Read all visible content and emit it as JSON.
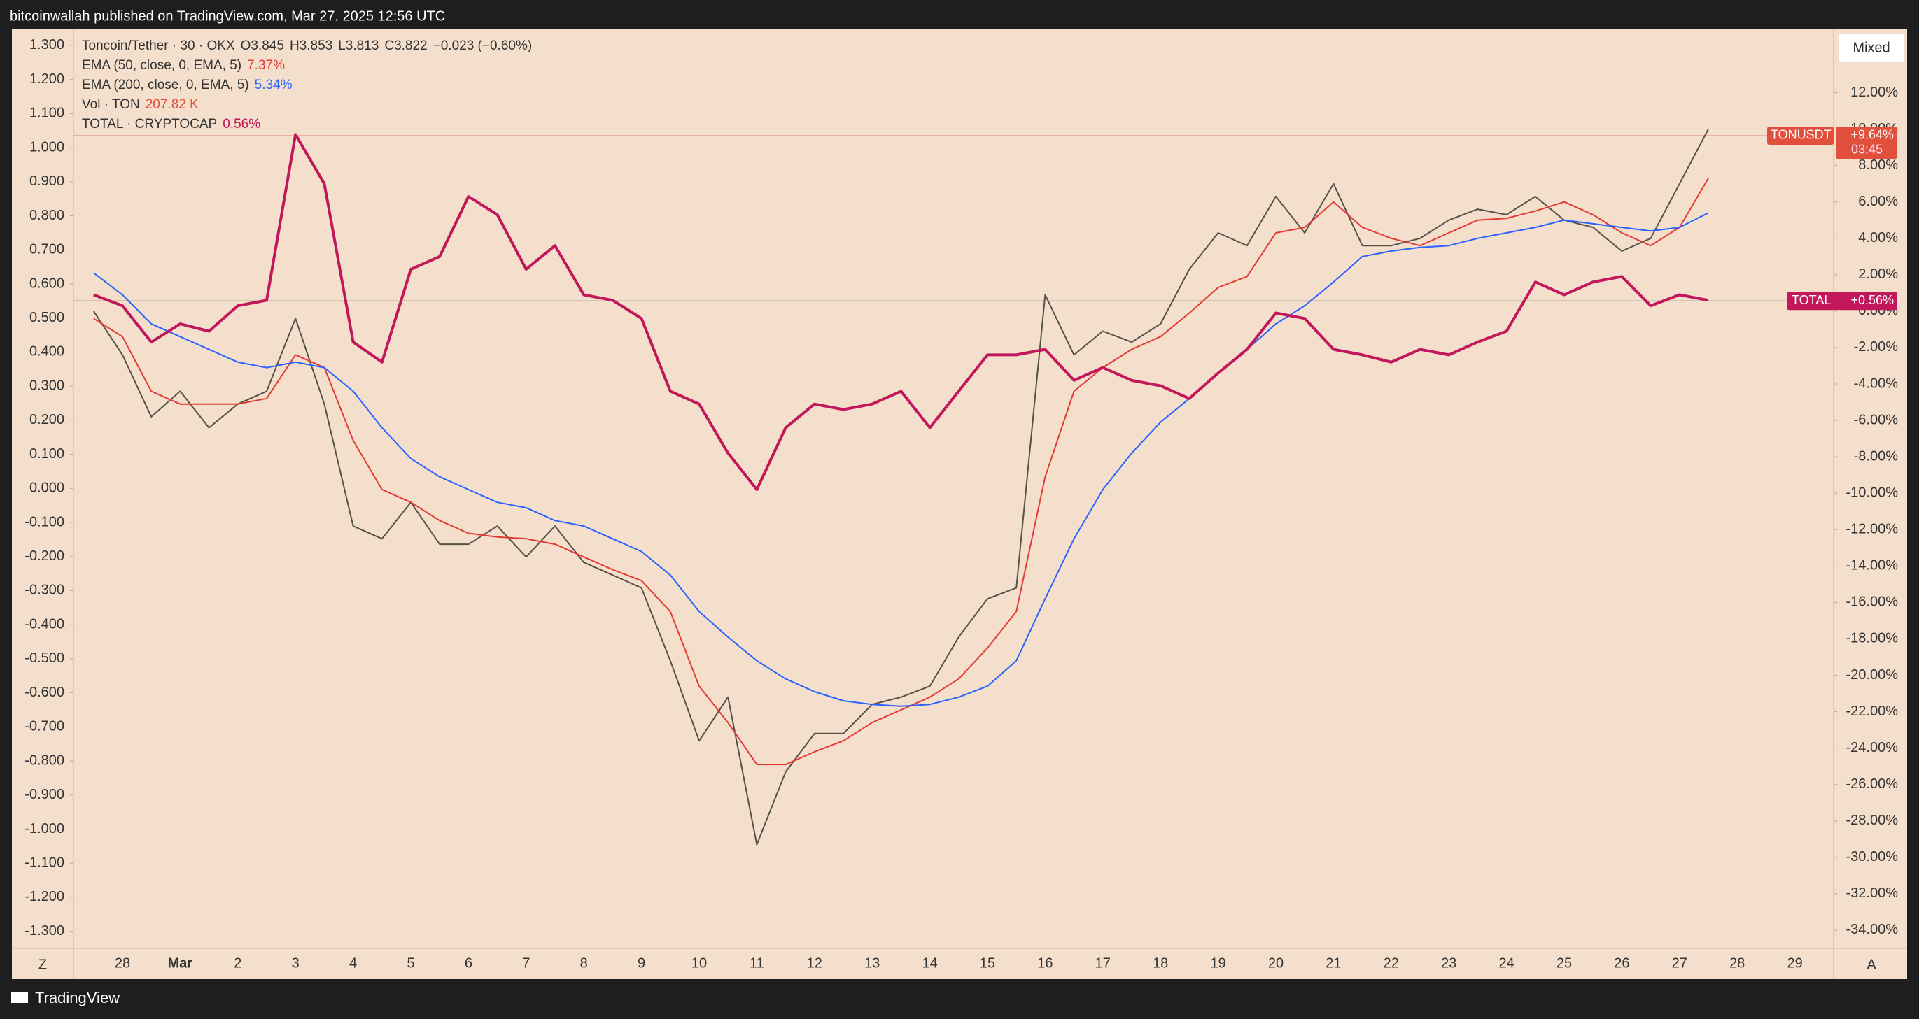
{
  "header": {
    "text": "bitcoinwallah published on TradingView.com, Mar 27, 2025 12:56 UTC"
  },
  "legend": {
    "open": "O3.845",
    "high": "H3.853",
    "low": "L3.813",
    "close": "C3.822",
    "change": "−0.023 (−0.60%)",
    "volume_name": "Vol · TON",
    "volume_value": "207.82 K"
  },
  "buttons": {
    "mode": "Mixed",
    "left": "Z",
    "right": "A"
  },
  "footer": {
    "brand": "TradingView"
  },
  "chart_data": {
    "type": "line",
    "categories": [
      null,
      "28",
      null,
      "Mar",
      null,
      "2",
      null,
      "3",
      null,
      "4",
      null,
      "5",
      null,
      "6",
      null,
      "7",
      null,
      "8",
      null,
      "9",
      null,
      "10",
      null,
      "11",
      null,
      "12",
      null,
      "13",
      null,
      "14",
      null,
      "15",
      null,
      "16",
      null,
      "17",
      null,
      "18",
      null,
      "19",
      null,
      "20",
      null,
      "21",
      null,
      "22",
      null,
      "23",
      null,
      "24",
      null,
      "25",
      null,
      "26",
      null,
      "27",
      null,
      "28",
      null,
      "29"
    ],
    "series": [
      {
        "name": "Toncoin/Tether · 30 · OKX",
        "color": "#555248",
        "axis": "y2",
        "values": [
          0,
          -2.4,
          -5.8,
          -4.4,
          -6.4,
          -5.1,
          -4.4,
          -0.4,
          -5.1,
          -11.8,
          -12.5,
          -10.5,
          -12.8,
          -12.8,
          -11.8,
          -13.5,
          -11.8,
          -13.8,
          -14.5,
          -15.2,
          -19.2,
          -23.6,
          -21.2,
          -29.3,
          -25.3,
          -23.2,
          -23.2,
          -21.6,
          -21.2,
          -20.6,
          -17.9,
          -15.8,
          -15.2,
          0.9,
          -2.4,
          -1.1,
          -1.7,
          -0.7,
          2.3,
          4.3,
          3.6,
          6.3,
          4.3,
          7.0,
          3.6,
          3.6,
          4.0,
          5.0,
          5.6,
          5.3,
          6.3,
          5.0,
          4.6,
          3.3,
          4.0,
          7.0,
          10.0,
          null,
          null,
          null
        ]
      },
      {
        "name": "EMA (50, close, 0, EMA, 5)",
        "legend_value": "7.37%",
        "color": "#e53935",
        "axis": "y2",
        "values": [
          -0.4,
          -1.4,
          -4.4,
          -5.1,
          -5.1,
          -5.1,
          -4.8,
          -2.4,
          -3.1,
          -7.1,
          -9.8,
          -10.5,
          -11.5,
          -12.2,
          -12.4,
          -12.5,
          -12.8,
          -13.5,
          -14.2,
          -14.8,
          -16.5,
          -20.6,
          -22.6,
          -24.9,
          -24.9,
          -24.2,
          -23.6,
          -22.6,
          -21.9,
          -21.2,
          -20.2,
          -18.5,
          -16.5,
          -9.1,
          -4.4,
          -3.1,
          -2.1,
          -1.4,
          -0.1,
          1.3,
          1.9,
          4.3,
          4.6,
          6.0,
          4.6,
          4.0,
          3.6,
          4.3,
          5.0,
          5.1,
          5.5,
          6.0,
          5.3,
          4.3,
          3.6,
          4.6,
          7.3,
          null,
          null,
          null
        ]
      },
      {
        "name": "EMA (200, close, 0, EMA, 5)",
        "legend_value": "5.34%",
        "color": "#2962ff",
        "axis": "y2",
        "values": [
          2.1,
          0.9,
          -0.7,
          -1.4,
          -2.1,
          -2.8,
          -3.1,
          -2.8,
          -3.1,
          -4.4,
          -6.4,
          -8.1,
          -9.1,
          -9.8,
          -10.5,
          -10.8,
          -11.5,
          -11.8,
          -12.5,
          -13.2,
          -14.5,
          -16.5,
          -17.9,
          -19.2,
          -20.2,
          -20.9,
          -21.4,
          -21.6,
          -21.7,
          -21.6,
          -21.2,
          -20.6,
          -19.2,
          -15.8,
          -12.5,
          -9.8,
          -7.8,
          -6.1,
          -4.8,
          -3.4,
          -2.1,
          -0.7,
          0.3,
          1.6,
          3.0,
          3.3,
          3.5,
          3.6,
          4.0,
          4.3,
          4.6,
          5.0,
          4.8,
          4.6,
          4.4,
          4.6,
          5.4,
          null,
          null,
          null
        ]
      },
      {
        "name": "TOTAL · CRYPTOCAP",
        "legend_value": "0.56%",
        "color": "#c2185b",
        "axis": "y2",
        "values": [
          0.9,
          0.3,
          -1.7,
          -0.7,
          -1.1,
          0.3,
          0.6,
          9.7,
          7.0,
          -1.7,
          -2.8,
          2.3,
          3.0,
          6.3,
          5.3,
          2.3,
          3.6,
          0.9,
          0.6,
          -0.4,
          -4.4,
          -5.1,
          -7.8,
          -9.8,
          -6.4,
          -5.1,
          -5.4,
          -5.1,
          -4.4,
          -6.4,
          -4.4,
          -2.4,
          -2.4,
          -2.1,
          -3.8,
          -3.1,
          -3.8,
          -4.1,
          -4.8,
          -3.4,
          -2.1,
          -0.1,
          -0.4,
          -2.1,
          -2.4,
          -2.8,
          -2.1,
          -2.4,
          -1.7,
          -1.1,
          1.6,
          0.9,
          1.6,
          1.9,
          0.3,
          0.9,
          0.6,
          null,
          null,
          null
        ]
      }
    ],
    "price_lines": [
      {
        "label": "TONUSDT",
        "value": 9.64,
        "value_label": "+9.64%",
        "time": "03:45",
        "color": "#e0503c"
      },
      {
        "label": "TOTAL",
        "value": 0.56,
        "value_label": "+0.56%",
        "color": "#c2185b"
      }
    ],
    "ylim": [
      -1.35,
      1.343
    ],
    "yticks": [
      {
        "value": 1.3,
        "label": "1.300"
      },
      {
        "value": 1.2,
        "label": "1.200"
      },
      {
        "value": 1.1,
        "label": "1.100"
      },
      {
        "value": 1.0,
        "label": "1.000"
      },
      {
        "value": 0.9,
        "label": "0.900"
      },
      {
        "value": 0.8,
        "label": "0.800"
      },
      {
        "value": 0.7,
        "label": "0.700"
      },
      {
        "value": 0.6,
        "label": "0.600"
      },
      {
        "value": 0.5,
        "label": "0.500"
      },
      {
        "value": 0.4,
        "label": "0.400"
      },
      {
        "value": 0.3,
        "label": "0.300"
      },
      {
        "value": 0.2,
        "label": "0.200"
      },
      {
        "value": 0.1,
        "label": "0.100"
      },
      {
        "value": 0,
        "label": "0.000"
      },
      {
        "value": -0.1,
        "label": "-0.100"
      },
      {
        "value": -0.2,
        "label": "-0.200"
      },
      {
        "value": -0.3,
        "label": "-0.300"
      },
      {
        "value": -0.4,
        "label": "-0.400"
      },
      {
        "value": -0.5,
        "label": "-0.500"
      },
      {
        "value": -0.6,
        "label": "-0.600"
      },
      {
        "value": -0.7,
        "label": "-0.700"
      },
      {
        "value": -0.8,
        "label": "-0.800"
      },
      {
        "value": -0.9,
        "label": "-0.900"
      },
      {
        "value": -1.0,
        "label": "-1.000"
      },
      {
        "value": -1.1,
        "label": "-1.100"
      },
      {
        "value": -1.2,
        "label": "-1.200"
      },
      {
        "value": -1.3,
        "label": "-1.300"
      }
    ],
    "y2lim": [
      -35.0,
      15.4
    ],
    "y2ticks": [
      {
        "value": 12,
        "label": "12.00%"
      },
      {
        "value": 10,
        "label": "10.00%"
      },
      {
        "value": 8,
        "label": "8.00%"
      },
      {
        "value": 6,
        "label": "6.00%"
      },
      {
        "value": 4,
        "label": "4.00%"
      },
      {
        "value": 2,
        "label": "2.00%"
      },
      {
        "value": 0,
        "label": "0.00%"
      },
      {
        "value": -2,
        "label": "-2.00%"
      },
      {
        "value": -4,
        "label": "-4.00%"
      },
      {
        "value": -6,
        "label": "-6.00%"
      },
      {
        "value": -8,
        "label": "-8.00%"
      },
      {
        "value": -10,
        "label": "-10.00%"
      },
      {
        "value": -12,
        "label": "-12.00%"
      },
      {
        "value": -14,
        "label": "-14.00%"
      },
      {
        "value": -16,
        "label": "-16.00%"
      },
      {
        "value": -18,
        "label": "-18.00%"
      },
      {
        "value": -20,
        "label": "-20.00%"
      },
      {
        "value": -22,
        "label": "-22.00%"
      },
      {
        "value": -24,
        "label": "-24.00%"
      },
      {
        "value": -26,
        "label": "-26.00%"
      },
      {
        "value": -28,
        "label": "-28.00%"
      },
      {
        "value": -30,
        "label": "-30.00%"
      },
      {
        "value": -32,
        "label": "-32.00%"
      },
      {
        "value": -34,
        "label": "-34.00%"
      }
    ]
  }
}
